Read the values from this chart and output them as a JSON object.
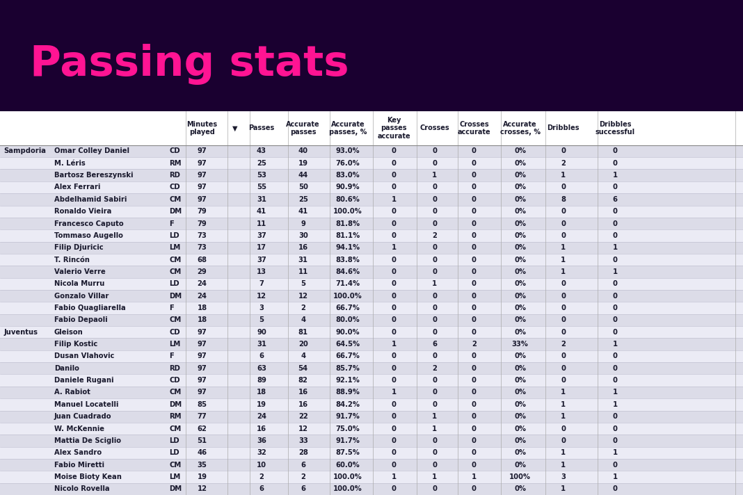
{
  "title": "Passing stats",
  "title_color": "#FF1493",
  "bg_color": "#1a0030",
  "table_bg": "#f0f0f0",
  "row_colors": [
    "#dcdce8",
    "#ebebf5"
  ],
  "teams": [
    {
      "name": "Sampdoria",
      "players": [
        {
          "name": "Omar Colley Daniel",
          "pos": "CD",
          "min": 97,
          "passes": 43,
          "acc_passes": 40,
          "acc_pct": "93.0%",
          "key": 0,
          "crosses": 0,
          "cross_acc": 0,
          "cross_pct": "0%",
          "drib": 0,
          "drib_succ": 0
        },
        {
          "name": "M. Léris",
          "pos": "RM",
          "min": 97,
          "passes": 25,
          "acc_passes": 19,
          "acc_pct": "76.0%",
          "key": 0,
          "crosses": 0,
          "cross_acc": 0,
          "cross_pct": "0%",
          "drib": 2,
          "drib_succ": 0
        },
        {
          "name": "Bartosz Bereszynski",
          "pos": "RD",
          "min": 97,
          "passes": 53,
          "acc_passes": 44,
          "acc_pct": "83.0%",
          "key": 0,
          "crosses": 1,
          "cross_acc": 0,
          "cross_pct": "0%",
          "drib": 1,
          "drib_succ": 1
        },
        {
          "name": "Alex Ferrari",
          "pos": "CD",
          "min": 97,
          "passes": 55,
          "acc_passes": 50,
          "acc_pct": "90.9%",
          "key": 0,
          "crosses": 0,
          "cross_acc": 0,
          "cross_pct": "0%",
          "drib": 0,
          "drib_succ": 0
        },
        {
          "name": "Abdelhamid Sabiri",
          "pos": "CM",
          "min": 97,
          "passes": 31,
          "acc_passes": 25,
          "acc_pct": "80.6%",
          "key": 1,
          "crosses": 0,
          "cross_acc": 0,
          "cross_pct": "0%",
          "drib": 8,
          "drib_succ": 6
        },
        {
          "name": "Ronaldo Vieira",
          "pos": "DM",
          "min": 79,
          "passes": 41,
          "acc_passes": 41,
          "acc_pct": "100.0%",
          "key": 0,
          "crosses": 0,
          "cross_acc": 0,
          "cross_pct": "0%",
          "drib": 0,
          "drib_succ": 0
        },
        {
          "name": "Francesco Caputo",
          "pos": "F",
          "min": 79,
          "passes": 11,
          "acc_passes": 9,
          "acc_pct": "81.8%",
          "key": 0,
          "crosses": 0,
          "cross_acc": 0,
          "cross_pct": "0%",
          "drib": 0,
          "drib_succ": 0
        },
        {
          "name": "Tommaso Augello",
          "pos": "LD",
          "min": 73,
          "passes": 37,
          "acc_passes": 30,
          "acc_pct": "81.1%",
          "key": 0,
          "crosses": 2,
          "cross_acc": 0,
          "cross_pct": "0%",
          "drib": 0,
          "drib_succ": 0
        },
        {
          "name": "Filip Djuricic",
          "pos": "LM",
          "min": 73,
          "passes": 17,
          "acc_passes": 16,
          "acc_pct": "94.1%",
          "key": 1,
          "crosses": 0,
          "cross_acc": 0,
          "cross_pct": "0%",
          "drib": 1,
          "drib_succ": 1
        },
        {
          "name": "T. Rincón",
          "pos": "CM",
          "min": 68,
          "passes": 37,
          "acc_passes": 31,
          "acc_pct": "83.8%",
          "key": 0,
          "crosses": 0,
          "cross_acc": 0,
          "cross_pct": "0%",
          "drib": 1,
          "drib_succ": 0
        },
        {
          "name": "Valerio Verre",
          "pos": "CM",
          "min": 29,
          "passes": 13,
          "acc_passes": 11,
          "acc_pct": "84.6%",
          "key": 0,
          "crosses": 0,
          "cross_acc": 0,
          "cross_pct": "0%",
          "drib": 1,
          "drib_succ": 1
        },
        {
          "name": "Nicola Murru",
          "pos": "LD",
          "min": 24,
          "passes": 7,
          "acc_passes": 5,
          "acc_pct": "71.4%",
          "key": 0,
          "crosses": 1,
          "cross_acc": 0,
          "cross_pct": "0%",
          "drib": 0,
          "drib_succ": 0
        },
        {
          "name": "Gonzalo Villar",
          "pos": "DM",
          "min": 24,
          "passes": 12,
          "acc_passes": 12,
          "acc_pct": "100.0%",
          "key": 0,
          "crosses": 0,
          "cross_acc": 0,
          "cross_pct": "0%",
          "drib": 0,
          "drib_succ": 0
        },
        {
          "name": "Fabio Quagliarella",
          "pos": "F",
          "min": 18,
          "passes": 3,
          "acc_passes": 2,
          "acc_pct": "66.7%",
          "key": 0,
          "crosses": 0,
          "cross_acc": 0,
          "cross_pct": "0%",
          "drib": 0,
          "drib_succ": 0
        },
        {
          "name": "Fabio Depaoli",
          "pos": "CM",
          "min": 18,
          "passes": 5,
          "acc_passes": 4,
          "acc_pct": "80.0%",
          "key": 0,
          "crosses": 0,
          "cross_acc": 0,
          "cross_pct": "0%",
          "drib": 0,
          "drib_succ": 0
        }
      ]
    },
    {
      "name": "Juventus",
      "players": [
        {
          "name": "Gleison",
          "pos": "CD",
          "min": 97,
          "passes": 90,
          "acc_passes": 81,
          "acc_pct": "90.0%",
          "key": 0,
          "crosses": 0,
          "cross_acc": 0,
          "cross_pct": "0%",
          "drib": 0,
          "drib_succ": 0
        },
        {
          "name": "Filip Kostic",
          "pos": "LM",
          "min": 97,
          "passes": 31,
          "acc_passes": 20,
          "acc_pct": "64.5%",
          "key": 1,
          "crosses": 6,
          "cross_acc": 2,
          "cross_pct": "33%",
          "drib": 2,
          "drib_succ": 1
        },
        {
          "name": "Dusan Vlahovic",
          "pos": "F",
          "min": 97,
          "passes": 6,
          "acc_passes": 4,
          "acc_pct": "66.7%",
          "key": 0,
          "crosses": 0,
          "cross_acc": 0,
          "cross_pct": "0%",
          "drib": 0,
          "drib_succ": 0
        },
        {
          "name": "Danilo",
          "pos": "RD",
          "min": 97,
          "passes": 63,
          "acc_passes": 54,
          "acc_pct": "85.7%",
          "key": 0,
          "crosses": 2,
          "cross_acc": 0,
          "cross_pct": "0%",
          "drib": 0,
          "drib_succ": 0
        },
        {
          "name": "Daniele Rugani",
          "pos": "CD",
          "min": 97,
          "passes": 89,
          "acc_passes": 82,
          "acc_pct": "92.1%",
          "key": 0,
          "crosses": 0,
          "cross_acc": 0,
          "cross_pct": "0%",
          "drib": 0,
          "drib_succ": 0
        },
        {
          "name": "A. Rabiot",
          "pos": "CM",
          "min": 97,
          "passes": 18,
          "acc_passes": 16,
          "acc_pct": "88.9%",
          "key": 1,
          "crosses": 0,
          "cross_acc": 0,
          "cross_pct": "0%",
          "drib": 1,
          "drib_succ": 1
        },
        {
          "name": "Manuel Locatelli",
          "pos": "DM",
          "min": 85,
          "passes": 19,
          "acc_passes": 16,
          "acc_pct": "84.2%",
          "key": 0,
          "crosses": 0,
          "cross_acc": 0,
          "cross_pct": "0%",
          "drib": 1,
          "drib_succ": 1
        },
        {
          "name": "Juan Cuadrado",
          "pos": "RM",
          "min": 77,
          "passes": 24,
          "acc_passes": 22,
          "acc_pct": "91.7%",
          "key": 0,
          "crosses": 1,
          "cross_acc": 0,
          "cross_pct": "0%",
          "drib": 1,
          "drib_succ": 0
        },
        {
          "name": "W. McKennie",
          "pos": "CM",
          "min": 62,
          "passes": 16,
          "acc_passes": 12,
          "acc_pct": "75.0%",
          "key": 0,
          "crosses": 1,
          "cross_acc": 0,
          "cross_pct": "0%",
          "drib": 0,
          "drib_succ": 0
        },
        {
          "name": "Mattia De Sciglio",
          "pos": "LD",
          "min": 51,
          "passes": 36,
          "acc_passes": 33,
          "acc_pct": "91.7%",
          "key": 0,
          "crosses": 0,
          "cross_acc": 0,
          "cross_pct": "0%",
          "drib": 0,
          "drib_succ": 0
        },
        {
          "name": "Alex Sandro",
          "pos": "LD",
          "min": 46,
          "passes": 32,
          "acc_passes": 28,
          "acc_pct": "87.5%",
          "key": 0,
          "crosses": 0,
          "cross_acc": 0,
          "cross_pct": "0%",
          "drib": 1,
          "drib_succ": 1
        },
        {
          "name": "Fabio Miretti",
          "pos": "CM",
          "min": 35,
          "passes": 10,
          "acc_passes": 6,
          "acc_pct": "60.0%",
          "key": 0,
          "crosses": 0,
          "cross_acc": 0,
          "cross_pct": "0%",
          "drib": 1,
          "drib_succ": 0
        },
        {
          "name": "Moise Bioty Kean",
          "pos": "LM",
          "min": 19,
          "passes": 2,
          "acc_passes": 2,
          "acc_pct": "100.0%",
          "key": 1,
          "crosses": 1,
          "cross_acc": 1,
          "cross_pct": "100%",
          "drib": 3,
          "drib_succ": 1
        },
        {
          "name": "Nicolo Rovella",
          "pos": "DM",
          "min": 12,
          "passes": 6,
          "acc_passes": 6,
          "acc_pct": "100.0%",
          "key": 0,
          "crosses": 0,
          "cross_acc": 0,
          "cross_pct": "0%",
          "drib": 1,
          "drib_succ": 0
        }
      ]
    }
  ]
}
